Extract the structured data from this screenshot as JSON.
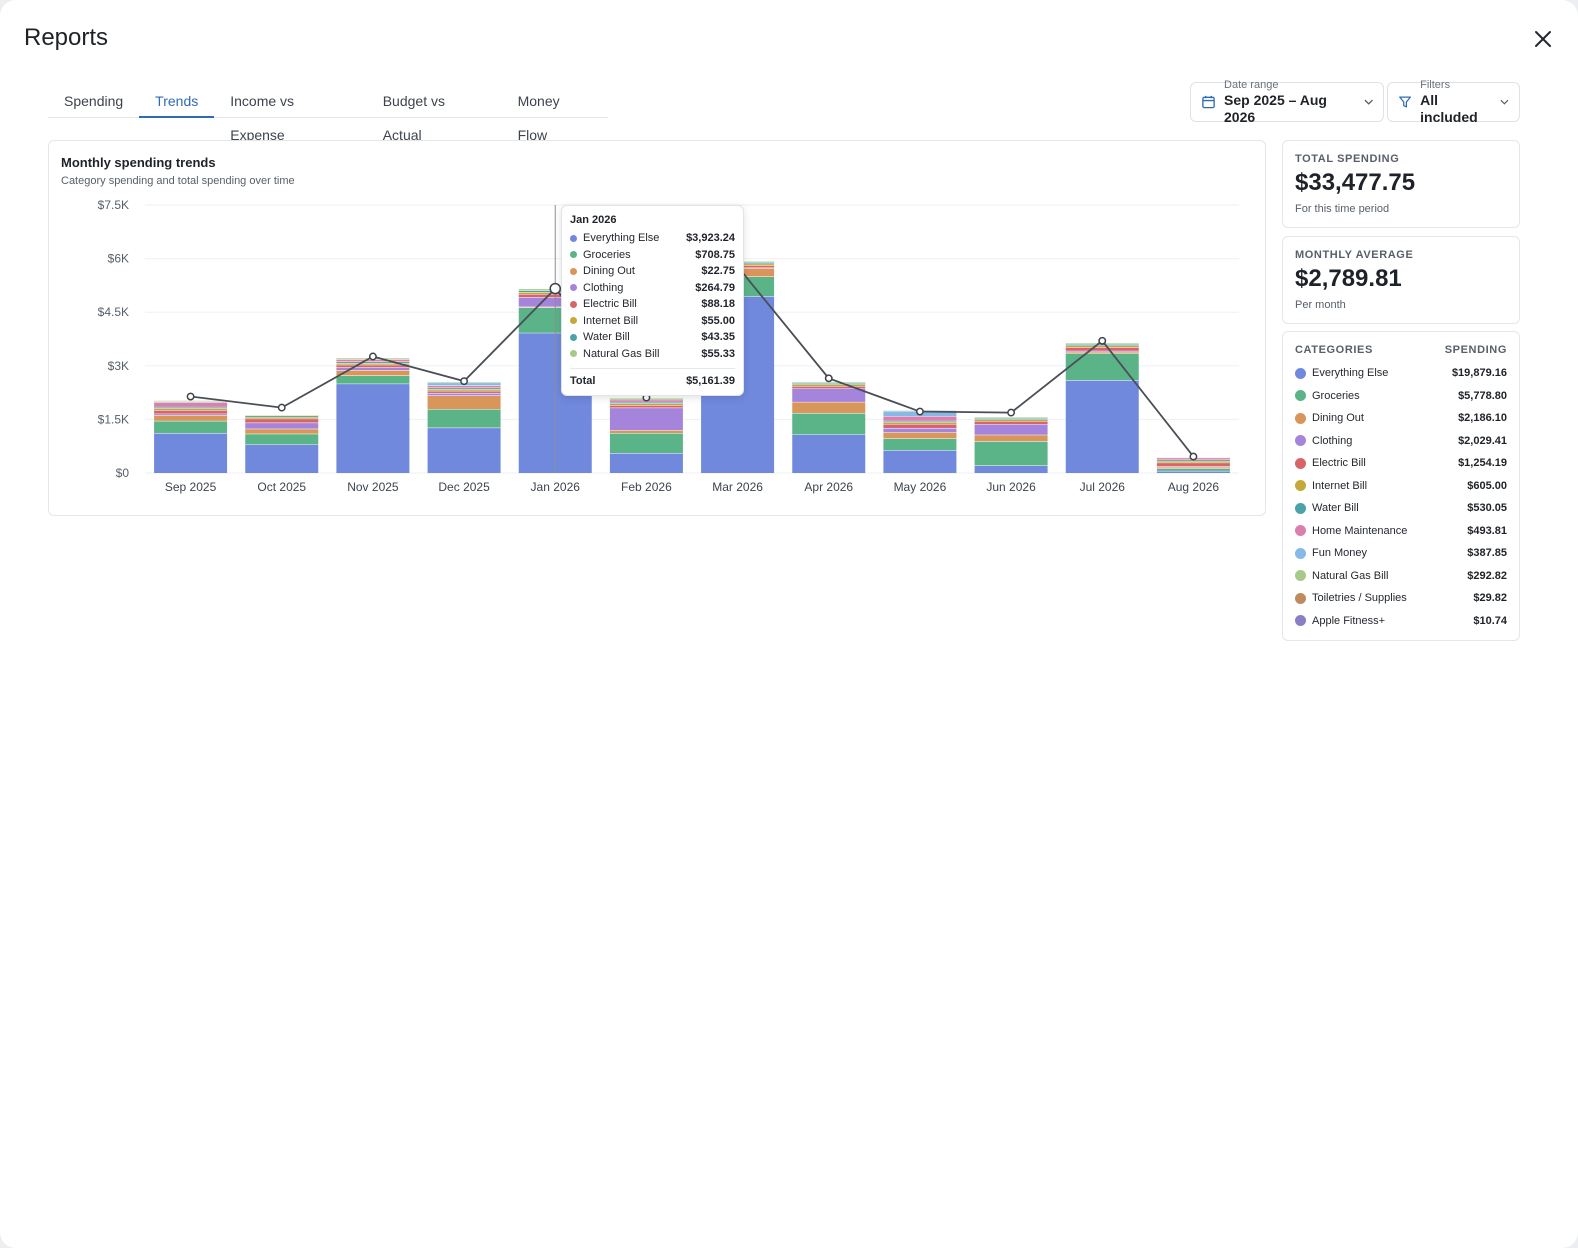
{
  "modal": {
    "title": "Reports"
  },
  "tabs": [
    {
      "label": "Spending",
      "active": false
    },
    {
      "label": "Trends",
      "active": true
    },
    {
      "label": "Income vs Expense",
      "active": false
    },
    {
      "label": "Budget vs Actual",
      "active": false
    },
    {
      "label": "Money Flow",
      "active": false
    }
  ],
  "date_range": {
    "label": "Date range",
    "value": "Sep 2025 – Aug 2026"
  },
  "filters": {
    "label": "Filters",
    "value": "All included"
  },
  "chart_card": {
    "title": "Monthly spending trends",
    "subtitle": "Category spending and total spending over time"
  },
  "tooltip": {
    "month": "Jan 2026",
    "rows": [
      {
        "name": "Everything Else",
        "value": "$3,923.24",
        "color": "#7089dd"
      },
      {
        "name": "Groceries",
        "value": "$708.75",
        "color": "#5ab487"
      },
      {
        "name": "Dining Out",
        "value": "$22.75",
        "color": "#d9955a"
      },
      {
        "name": "Clothing",
        "value": "$264.79",
        "color": "#a584db"
      },
      {
        "name": "Electric Bill",
        "value": "$88.18",
        "color": "#d8646a"
      },
      {
        "name": "Internet Bill",
        "value": "$55.00",
        "color": "#c4a93a"
      },
      {
        "name": "Water Bill",
        "value": "$43.35",
        "color": "#4aa3a8"
      },
      {
        "name": "Natural Gas Bill",
        "value": "$55.33",
        "color": "#a8c98a"
      }
    ],
    "total_label": "Total",
    "total_value": "$5,161.39"
  },
  "stats": {
    "total": {
      "label": "TOTAL SPENDING",
      "value": "$33,477.75",
      "note": "For this time period"
    },
    "average": {
      "label": "MONTHLY AVERAGE",
      "value": "$2,789.81",
      "note": "Per month"
    }
  },
  "categories": {
    "header_left": "CATEGORIES",
    "header_right": "SPENDING",
    "items": [
      {
        "name": "Everything Else",
        "value": "$19,879.16",
        "color": "#7089dd"
      },
      {
        "name": "Groceries",
        "value": "$5,778.80",
        "color": "#5ab487"
      },
      {
        "name": "Dining Out",
        "value": "$2,186.10",
        "color": "#d9955a"
      },
      {
        "name": "Clothing",
        "value": "$2,029.41",
        "color": "#a584db"
      },
      {
        "name": "Electric Bill",
        "value": "$1,254.19",
        "color": "#d8646a"
      },
      {
        "name": "Internet Bill",
        "value": "$605.00",
        "color": "#c4a93a"
      },
      {
        "name": "Water Bill",
        "value": "$530.05",
        "color": "#4aa3a8"
      },
      {
        "name": "Home Maintenance",
        "value": "$493.81",
        "color": "#dd7fae"
      },
      {
        "name": "Fun Money",
        "value": "$387.85",
        "color": "#86b9e6"
      },
      {
        "name": "Natural Gas Bill",
        "value": "$292.82",
        "color": "#a8c98a"
      },
      {
        "name": "Toiletries / Supplies",
        "value": "$29.82",
        "color": "#bf8a5e"
      },
      {
        "name": "Apple Fitness+",
        "value": "$10.74",
        "color": "#8a7fc4"
      }
    ]
  },
  "chart_data": {
    "type": "bar",
    "stacked": true,
    "categories": [
      "Sep 2025",
      "Oct 2025",
      "Nov 2025",
      "Dec 2025",
      "Jan 2026",
      "Feb 2026",
      "Mar 2026",
      "Apr 2026",
      "May 2026",
      "Jun 2026",
      "Jul 2026",
      "Aug 2026"
    ],
    "y_ticks": [
      "$0",
      "$1.5K",
      "$3K",
      "$4.5K",
      "$6K",
      "$7.5K"
    ],
    "ylim": [
      0,
      7500
    ],
    "series": [
      {
        "name": "Everything Else",
        "color": "#7089dd",
        "values": [
          1120,
          800,
          2500,
          1270,
          3923.24,
          560,
          4950,
          1080,
          640,
          210,
          2600,
          60
        ]
      },
      {
        "name": "Groceries",
        "color": "#5ab487",
        "values": [
          340,
          300,
          230,
          520,
          708.75,
          560,
          550,
          600,
          330,
          680,
          750,
          70
        ]
      },
      {
        "name": "Dining Out",
        "color": "#d9955a",
        "values": [
          160,
          140,
          150,
          380,
          22.75,
          80,
          230,
          310,
          170,
          180,
          40,
          40
        ]
      },
      {
        "name": "Clothing",
        "color": "#a584db",
        "values": [
          40,
          170,
          80,
          70,
          264.79,
          630,
          20,
          380,
          120,
          300,
          30,
          20
        ]
      },
      {
        "name": "Electric Bill",
        "color": "#d8646a",
        "values": [
          100,
          110,
          70,
          60,
          88.18,
          70,
          60,
          60,
          110,
          80,
          100,
          100
        ]
      },
      {
        "name": "Internet Bill",
        "color": "#c4a93a",
        "values": [
          50,
          50,
          50,
          50,
          55.0,
          50,
          50,
          50,
          50,
          50,
          50,
          50
        ]
      },
      {
        "name": "Water Bill",
        "color": "#4aa3a8",
        "values": [
          40,
          40,
          40,
          40,
          43.35,
          40,
          40,
          40,
          40,
          40,
          40,
          40
        ]
      },
      {
        "name": "Home Maintenance",
        "color": "#dd7fae",
        "values": [
          130,
          0,
          60,
          60,
          0,
          60,
          0,
          0,
          130,
          0,
          0,
          50
        ]
      },
      {
        "name": "Fun Money",
        "color": "#86b9e6",
        "values": [
          20,
          0,
          0,
          80,
          0,
          0,
          0,
          0,
          150,
          0,
          0,
          0
        ]
      },
      {
        "name": "Natural Gas Bill",
        "color": "#a8c98a",
        "values": [
          25,
          25,
          40,
          30,
          55.33,
          50,
          30,
          25,
          20,
          25,
          30,
          0
        ]
      },
      {
        "name": "Toiletries / Supplies",
        "color": "#bf8a5e",
        "values": [
          10,
          0,
          5,
          0,
          0,
          0,
          0,
          5,
          0,
          5,
          0,
          5
        ]
      },
      {
        "name": "Apple Fitness+",
        "color": "#8a7fc4",
        "values": [
          0,
          0,
          0,
          0,
          0,
          0,
          0,
          0,
          0,
          0,
          0,
          10
        ]
      }
    ],
    "line_series": {
      "values": [
        2140,
        1830,
        3260,
        2570,
        5161.39,
        2110,
        5780,
        2650,
        1720,
        1690,
        3700,
        460
      ]
    },
    "highlighted_category": "Jan 2026",
    "grid": true
  }
}
